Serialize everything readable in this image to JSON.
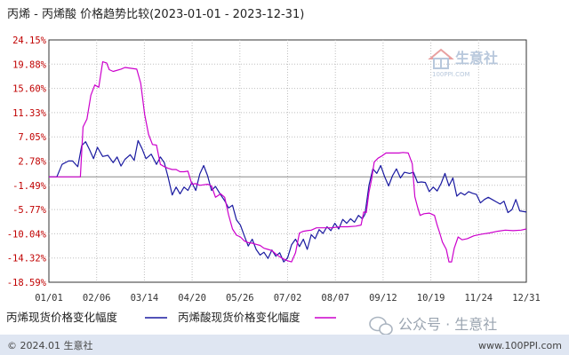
{
  "chart_data": {
    "type": "line",
    "title": "丙烯 - 丙烯酸 价格趋势比较(2023-01-01 - 2023-12-31)",
    "x_tick_labels": [
      "01/01",
      "02/06",
      "03/14",
      "04/20",
      "05/26",
      "07/02",
      "08/07",
      "09/12",
      "10/19",
      "11/24",
      "12/31"
    ],
    "y_tick_labels": [
      "24.15%",
      "19.88%",
      "15.60%",
      "11.33%",
      "7.05%",
      "2.78%",
      "-1.49%",
      "-5.77%",
      "-10.04%",
      "-14.32%",
      "-18.59%"
    ],
    "ylim": [
      -18.59,
      24.15
    ],
    "x_range_days": [
      0,
      364
    ],
    "grid": "vertical dotted, horizontal dotted",
    "series": [
      {
        "name": "丙烯现货价格变化幅度",
        "color": "#1a1aa0",
        "points": [
          [
            0,
            0.0
          ],
          [
            6,
            0.0
          ],
          [
            10,
            2.2
          ],
          [
            15,
            2.8
          ],
          [
            18,
            2.8
          ],
          [
            22,
            1.8
          ],
          [
            25,
            5.5
          ],
          [
            28,
            6.2
          ],
          [
            31,
            4.8
          ],
          [
            34,
            3.2
          ],
          [
            37,
            5.2
          ],
          [
            41,
            3.6
          ],
          [
            45,
            3.8
          ],
          [
            49,
            2.5
          ],
          [
            52,
            3.5
          ],
          [
            55,
            1.9
          ],
          [
            58,
            3.1
          ],
          [
            62,
            3.9
          ],
          [
            65,
            2.9
          ],
          [
            68,
            6.4
          ],
          [
            71,
            5.0
          ],
          [
            74,
            3.2
          ],
          [
            78,
            4.0
          ],
          [
            82,
            2.2
          ],
          [
            85,
            3.5
          ],
          [
            88,
            2.5
          ],
          [
            91,
            -0.2
          ],
          [
            94,
            -3.2
          ],
          [
            97,
            -1.8
          ],
          [
            100,
            -3.0
          ],
          [
            103,
            -1.8
          ],
          [
            106,
            -2.4
          ],
          [
            109,
            -1.0
          ],
          [
            112,
            -2.4
          ],
          [
            115,
            0.5
          ],
          [
            118,
            2.0
          ],
          [
            121,
            0.2
          ],
          [
            124,
            -2.4
          ],
          [
            127,
            -1.7
          ],
          [
            131,
            -3.2
          ],
          [
            134,
            -4.2
          ],
          [
            137,
            -5.5
          ],
          [
            140,
            -5.0
          ],
          [
            143,
            -7.6
          ],
          [
            146,
            -8.5
          ],
          [
            149,
            -10.4
          ],
          [
            152,
            -12.2
          ],
          [
            155,
            -11.0
          ],
          [
            158,
            -12.8
          ],
          [
            161,
            -13.8
          ],
          [
            164,
            -13.3
          ],
          [
            167,
            -14.4
          ],
          [
            170,
            -12.9
          ],
          [
            173,
            -14.0
          ],
          [
            176,
            -13.4
          ],
          [
            179,
            -15.0
          ],
          [
            182,
            -14.3
          ],
          [
            185,
            -12.0
          ],
          [
            188,
            -11.0
          ],
          [
            191,
            -12.3
          ],
          [
            194,
            -11.0
          ],
          [
            197,
            -12.8
          ],
          [
            200,
            -10.2
          ],
          [
            203,
            -10.9
          ],
          [
            206,
            -9.3
          ],
          [
            209,
            -10.0
          ],
          [
            212,
            -8.8
          ],
          [
            215,
            -9.5
          ],
          [
            218,
            -8.2
          ],
          [
            221,
            -9.2
          ],
          [
            224,
            -7.5
          ],
          [
            227,
            -8.2
          ],
          [
            230,
            -7.4
          ],
          [
            233,
            -8.0
          ],
          [
            236,
            -6.8
          ],
          [
            239,
            -7.4
          ],
          [
            241,
            -6.6
          ],
          [
            244,
            -1.5
          ],
          [
            247,
            1.4
          ],
          [
            250,
            0.6
          ],
          [
            253,
            2.0
          ],
          [
            256,
            0.0
          ],
          [
            259,
            -1.6
          ],
          [
            262,
            0.2
          ],
          [
            265,
            1.4
          ],
          [
            268,
            -0.2
          ],
          [
            271,
            0.8
          ],
          [
            275,
            0.6
          ],
          [
            278,
            0.8
          ],
          [
            281,
            -1.0
          ],
          [
            284,
            -0.9
          ],
          [
            287,
            -1.0
          ],
          [
            290,
            -2.6
          ],
          [
            293,
            -1.8
          ],
          [
            296,
            -2.5
          ],
          [
            299,
            -1.2
          ],
          [
            302,
            0.6
          ],
          [
            305,
            -1.6
          ],
          [
            308,
            -0.2
          ],
          [
            311,
            -3.4
          ],
          [
            314,
            -2.8
          ],
          [
            317,
            -3.2
          ],
          [
            320,
            -2.6
          ],
          [
            323,
            -2.9
          ],
          [
            326,
            -3.1
          ],
          [
            329,
            -4.6
          ],
          [
            332,
            -4.0
          ],
          [
            335,
            -3.6
          ],
          [
            338,
            -4.0
          ],
          [
            341,
            -4.4
          ],
          [
            344,
            -4.8
          ],
          [
            347,
            -4.3
          ],
          [
            350,
            -6.3
          ],
          [
            353,
            -5.8
          ],
          [
            356,
            -4.0
          ],
          [
            359,
            -6.0
          ],
          [
            364,
            -6.2
          ]
        ]
      },
      {
        "name": "丙烯酸现货价格变化幅度",
        "color": "#cc00cc",
        "points": [
          [
            0,
            0.0
          ],
          [
            24,
            0.0
          ],
          [
            26,
            8.8
          ],
          [
            29,
            10.2
          ],
          [
            32,
            14.4
          ],
          [
            35,
            16.2
          ],
          [
            38,
            15.8
          ],
          [
            41,
            20.3
          ],
          [
            44,
            20.1
          ],
          [
            46,
            18.9
          ],
          [
            49,
            18.6
          ],
          [
            55,
            19.0
          ],
          [
            58,
            19.3
          ],
          [
            67,
            19.0
          ],
          [
            70,
            16.5
          ],
          [
            73,
            11.0
          ],
          [
            76,
            7.5
          ],
          [
            79,
            5.7
          ],
          [
            82,
            5.6
          ],
          [
            85,
            2.2
          ],
          [
            88,
            1.8
          ],
          [
            91,
            1.5
          ],
          [
            94,
            1.3
          ],
          [
            97,
            1.3
          ],
          [
            100,
            0.9
          ],
          [
            103,
            0.9
          ],
          [
            106,
            1.0
          ],
          [
            109,
            -1.3
          ],
          [
            112,
            -1.2
          ],
          [
            115,
            -1.5
          ],
          [
            118,
            -1.4
          ],
          [
            121,
            -1.3
          ],
          [
            124,
            -1.6
          ],
          [
            127,
            -3.6
          ],
          [
            131,
            -3.0
          ],
          [
            134,
            -3.6
          ],
          [
            137,
            -6.7
          ],
          [
            140,
            -9.2
          ],
          [
            143,
            -10.3
          ],
          [
            146,
            -10.6
          ],
          [
            149,
            -11.3
          ],
          [
            152,
            -11.6
          ],
          [
            155,
            -11.7
          ],
          [
            158,
            -11.9
          ],
          [
            161,
            -12.1
          ],
          [
            164,
            -12.6
          ],
          [
            167,
            -12.8
          ],
          [
            170,
            -13.0
          ],
          [
            173,
            -13.6
          ],
          [
            176,
            -14.1
          ],
          [
            179,
            -14.5
          ],
          [
            182,
            -14.8
          ],
          [
            185,
            -15.0
          ],
          [
            188,
            -13.4
          ],
          [
            191,
            -9.9
          ],
          [
            194,
            -9.6
          ],
          [
            197,
            -9.5
          ],
          [
            200,
            -9.4
          ],
          [
            204,
            -9.0
          ],
          [
            210,
            -9.0
          ],
          [
            216,
            -9.0
          ],
          [
            222,
            -8.8
          ],
          [
            228,
            -8.8
          ],
          [
            234,
            -8.7
          ],
          [
            238,
            -8.5
          ],
          [
            240,
            -6.2
          ],
          [
            242,
            -6.3
          ],
          [
            244,
            -2.7
          ],
          [
            246,
            -0.5
          ],
          [
            248,
            2.6
          ],
          [
            251,
            3.3
          ],
          [
            254,
            3.7
          ],
          [
            257,
            4.2
          ],
          [
            262,
            4.2
          ],
          [
            267,
            4.2
          ],
          [
            270,
            4.3
          ],
          [
            274,
            4.2
          ],
          [
            277,
            2.3
          ],
          [
            279,
            -3.5
          ],
          [
            281,
            -5.3
          ],
          [
            283,
            -6.8
          ],
          [
            286,
            -6.5
          ],
          [
            290,
            -6.4
          ],
          [
            294,
            -6.8
          ],
          [
            296,
            -8.5
          ],
          [
            298,
            -9.9
          ],
          [
            300,
            -11.5
          ],
          [
            303,
            -12.8
          ],
          [
            305,
            -15.0
          ],
          [
            307,
            -15.0
          ],
          [
            309,
            -12.6
          ],
          [
            312,
            -10.6
          ],
          [
            315,
            -11.1
          ],
          [
            319,
            -10.9
          ],
          [
            324,
            -10.4
          ],
          [
            330,
            -10.1
          ],
          [
            336,
            -9.9
          ],
          [
            342,
            -9.6
          ],
          [
            348,
            -9.4
          ],
          [
            354,
            -9.5
          ],
          [
            360,
            -9.4
          ],
          [
            364,
            -9.2
          ]
        ]
      }
    ],
    "legend_placement": "bottom-left"
  },
  "watermark": {
    "top_brand": "生意社",
    "top_url": "100PPI.COM",
    "bottom_prefix": "公众号 · 生意社"
  },
  "footer": {
    "left": "© 2024.01 生意社",
    "right": "www.100PPI.com"
  },
  "colors": {
    "frame": "#333333",
    "footer_bg": "#dfe6f2",
    "ytick": "#c00000",
    "grid": "#bfbfbf",
    "watermark": "#b8c8dc",
    "watermark_red": "#e8a0a0"
  }
}
